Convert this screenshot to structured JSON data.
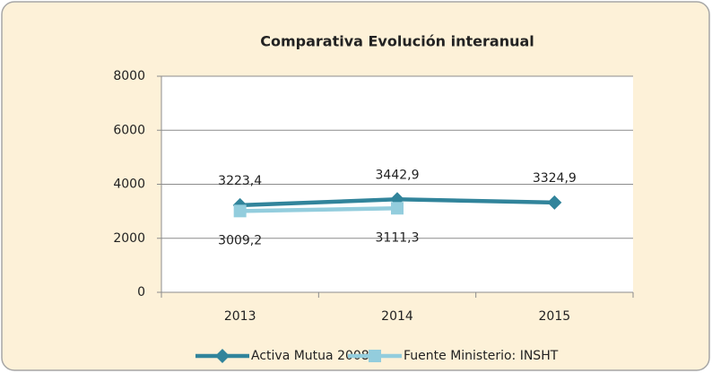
{
  "chart_data": {
    "type": "line",
    "title": "Comparativa Evolución interanual",
    "categories": [
      "2013",
      "2014",
      "2015"
    ],
    "series": [
      {
        "name": "Activa Mutua 2008",
        "color": "#31849b",
        "marker": "diamond",
        "values": [
          3223.4,
          3442.9,
          3324.9
        ],
        "value_labels": [
          "3223,4",
          "3442,9",
          "3324,9"
        ]
      },
      {
        "name": "Fuente Ministerio: INSHT",
        "color": "#93cddd",
        "marker": "square",
        "values": [
          3009.2,
          3111.3,
          null
        ],
        "value_labels": [
          "3009,2",
          "3111,3",
          null
        ]
      }
    ],
    "ylim": [
      0,
      8000
    ],
    "yticks": [
      0,
      2000,
      4000,
      6000,
      8000
    ],
    "grid": true,
    "legend": "bottom"
  }
}
